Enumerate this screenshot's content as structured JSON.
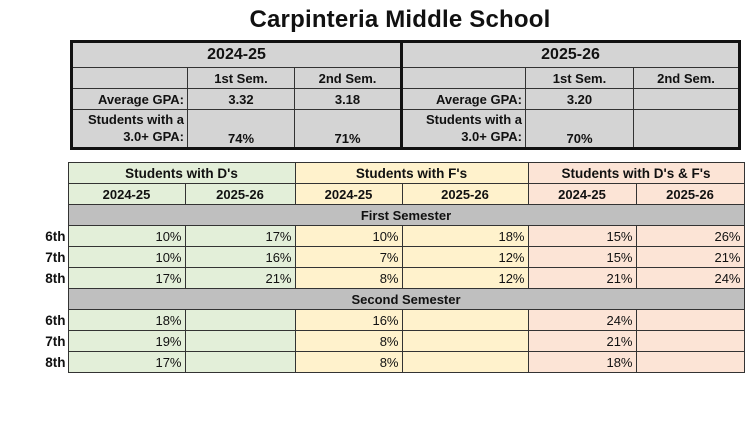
{
  "title": "Carpinteria Middle School",
  "gpa": {
    "years": [
      "2024-25",
      "2025-26"
    ],
    "sem1": "1st Sem.",
    "sem2": "2nd Sem.",
    "avg_label": "Average GPA:",
    "students_label_line1": "Students with a",
    "students_label_line2": "3.0+ GPA:",
    "y2425": {
      "avg_s1": "3.32",
      "avg_s2": "3.18",
      "pct_s1": "74%",
      "pct_s2": "71%"
    },
    "y2526": {
      "avg_s1": "3.20",
      "avg_s2": "",
      "pct_s1": "70%",
      "pct_s2": ""
    }
  },
  "df": {
    "groups": [
      "Students with D's",
      "Students with F's",
      "Students with D's & F's"
    ],
    "years": [
      "2024-25",
      "2025-26"
    ],
    "first_semester_label": "First Semester",
    "second_semester_label": "Second Semester",
    "first": [
      {
        "grade": "6th",
        "d2425": "10%",
        "d2526": "17%",
        "f2425": "10%",
        "f2526": "18%",
        "df2425": "15%",
        "df2526": "26%"
      },
      {
        "grade": "7th",
        "d2425": "10%",
        "d2526": "16%",
        "f2425": "7%",
        "f2526": "12%",
        "df2425": "15%",
        "df2526": "21%"
      },
      {
        "grade": "8th",
        "d2425": "17%",
        "d2526": "21%",
        "f2425": "8%",
        "f2526": "12%",
        "df2425": "21%",
        "df2526": "24%"
      }
    ],
    "second": [
      {
        "grade": "6th",
        "d2425": "18%",
        "d2526": "",
        "f2425": "16%",
        "f2526": "",
        "df2425": "24%",
        "df2526": ""
      },
      {
        "grade": "7th",
        "d2425": "19%",
        "d2526": "",
        "f2425": "8%",
        "f2526": "",
        "df2425": "21%",
        "df2526": ""
      },
      {
        "grade": "8th",
        "d2425": "17%",
        "d2526": "",
        "f2425": "8%",
        "f2526": "",
        "df2425": "18%",
        "df2526": ""
      }
    ]
  }
}
